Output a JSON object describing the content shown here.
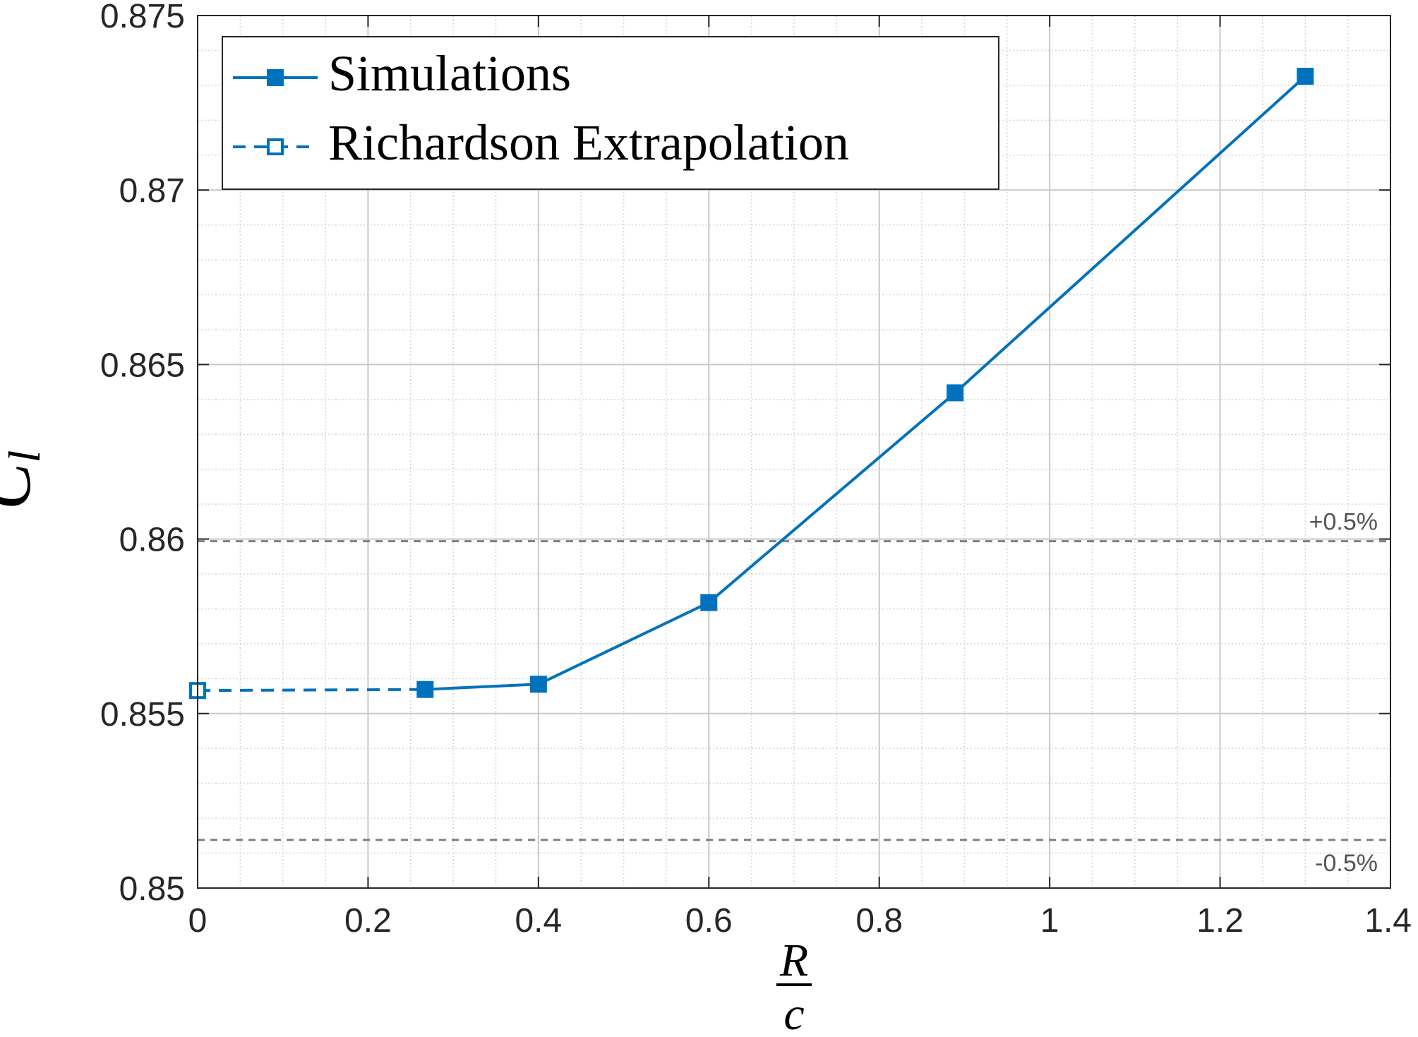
{
  "chart_data": {
    "type": "line",
    "xlabel": {
      "numerator": "R",
      "denominator": "c"
    },
    "ylabel": {
      "base": "C",
      "subscript": "l"
    },
    "xlim": [
      0,
      1.4
    ],
    "ylim": [
      0.85,
      0.875
    ],
    "x_ticks": [
      "0",
      "0.2",
      "0.4",
      "0.6",
      "0.8",
      "1",
      "1.2",
      "1.4"
    ],
    "y_ticks": [
      "0.85",
      "0.855",
      "0.86",
      "0.865",
      "0.87",
      "0.875"
    ],
    "grid": true,
    "minor_grid": true,
    "legend_position": "top-left",
    "series": [
      {
        "name": "Simulations",
        "style": "solid",
        "marker": "filled-square",
        "color": "#0072BD",
        "x": [
          0.267,
          0.4,
          0.6,
          0.889,
          1.3
        ],
        "y": [
          0.85569,
          0.85584,
          0.85818,
          0.86419,
          0.87326
        ]
      },
      {
        "name": "Richardson Extrapolation",
        "style": "dashed",
        "marker": "open-square",
        "color": "#0072BD",
        "x": [
          0,
          0.267
        ],
        "y": [
          0.85566,
          0.85569
        ]
      }
    ],
    "reference_lines": [
      {
        "label": "+0.5%",
        "y": 0.85994,
        "color": "#808080",
        "style": "dashed"
      },
      {
        "label": "-0.5%",
        "y": 0.85138,
        "color": "#808080",
        "style": "dashed"
      }
    ]
  }
}
